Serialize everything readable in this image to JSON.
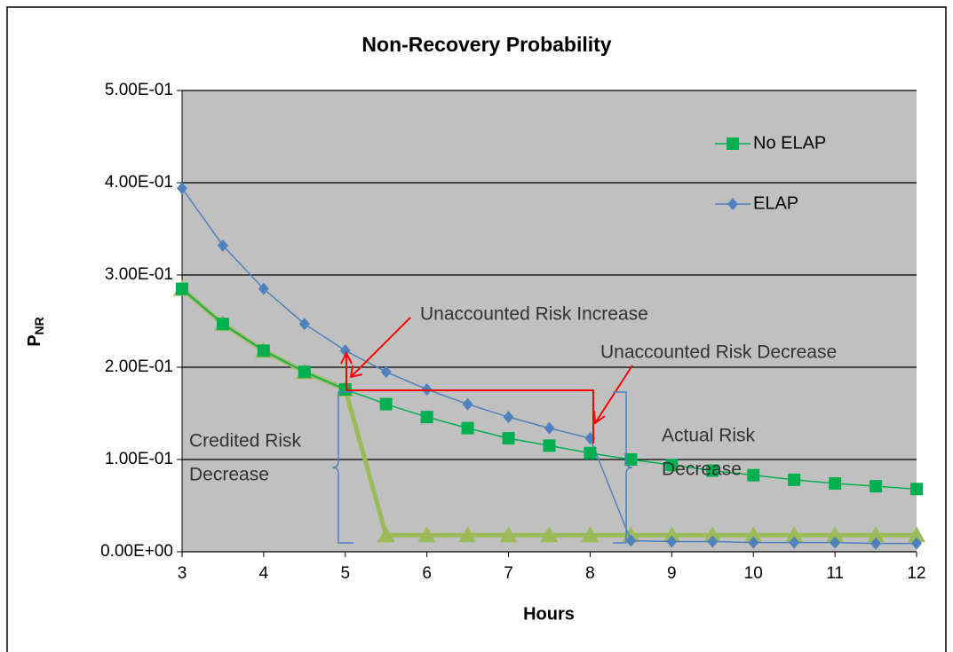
{
  "chart_data": {
    "type": "line",
    "title": "Non-Recovery Probability",
    "x_label": "Hours",
    "y_label": "P",
    "y_label_subscript": "NR",
    "x": [
      3,
      3.5,
      4,
      4.5,
      5,
      5.5,
      6,
      6.5,
      7,
      7.5,
      8,
      8.5,
      9,
      9.5,
      10,
      10.5,
      11,
      11.5,
      12
    ],
    "series": [
      {
        "name": "No ELAP",
        "color": "#00b050",
        "marker": "square",
        "line_width": 1.5,
        "values": [
          0.285,
          0.247,
          0.218,
          0.195,
          0.176,
          0.16,
          0.146,
          0.134,
          0.123,
          0.115,
          0.107,
          0.1,
          0.094,
          0.088,
          0.083,
          0.078,
          0.074,
          0.071,
          0.068
        ]
      },
      {
        "name": "ELAP",
        "color": "#4f81bd",
        "marker": "diamond",
        "line_width": 1.5,
        "values": [
          0.394,
          0.332,
          0.285,
          0.247,
          0.218,
          0.195,
          0.176,
          0.16,
          0.146,
          0.134,
          0.123,
          0.012,
          0.011,
          0.011,
          0.01,
          0.01,
          0.01,
          0.009,
          0.009
        ]
      },
      {
        "color": "#9bbb59",
        "marker": "triangle",
        "line_width": 5,
        "values": [
          0.285,
          0.247,
          0.218,
          0.195,
          0.176,
          0.018,
          0.018,
          0.018,
          0.018,
          0.018,
          0.018,
          0.018,
          0.018,
          0.018,
          0.018,
          0.018,
          0.018,
          0.018,
          0.018
        ]
      }
    ],
    "xlim": [
      3,
      12
    ],
    "xticks": [
      3,
      4,
      5,
      6,
      7,
      8,
      9,
      10,
      11,
      12
    ],
    "ylim": [
      0,
      0.5
    ],
    "yticks": [
      {
        "value": 0,
        "label": "0.00E+00"
      },
      {
        "value": 0.1,
        "label": "1.00E-01"
      },
      {
        "value": 0.2,
        "label": "2.00E-01"
      },
      {
        "value": 0.3,
        "label": "3.00E-01"
      },
      {
        "value": 0.4,
        "label": "4.00E-01"
      },
      {
        "value": 0.5,
        "label": "5.00E-01"
      }
    ],
    "grid": true,
    "legend": "upper right",
    "annotations": [
      {
        "lines": [
          "Unaccounted Risk Increase"
        ]
      },
      {
        "lines": [
          "Unaccounted Risk Decrease"
        ]
      },
      {
        "lines": [
          "Credited  Risk",
          "Decrease"
        ]
      },
      {
        "lines": [
          "Actual Risk",
          "Decrease"
        ]
      }
    ]
  }
}
